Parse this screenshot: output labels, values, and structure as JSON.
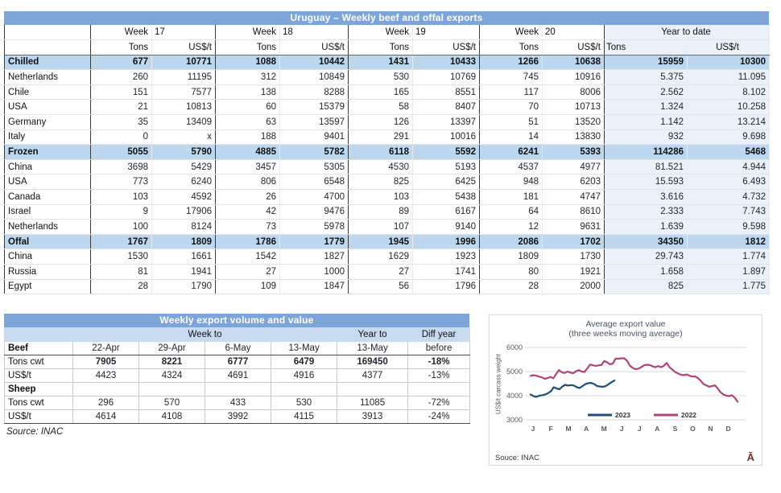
{
  "main_table": {
    "title": "Uruguay – Weekly beef and offal exports",
    "weeks": [
      {
        "label": "Week",
        "num": "17"
      },
      {
        "label": "Week",
        "num": "18"
      },
      {
        "label": "Week",
        "num": "19"
      },
      {
        "label": "Week",
        "num": "20"
      }
    ],
    "ytd_label": "Year to date",
    "tons_label": "Tons",
    "usdt_label": "US$/t",
    "rows": [
      {
        "label": "Chilled",
        "section": true,
        "values": [
          "677",
          "10771",
          "1088",
          "10442",
          "1431",
          "10433",
          "1266",
          "10638",
          "15959",
          "10300"
        ]
      },
      {
        "label": "Netherlands",
        "section": false,
        "values": [
          "260",
          "11195",
          "312",
          "10849",
          "530",
          "10769",
          "745",
          "10916",
          "5.375",
          "11.095"
        ]
      },
      {
        "label": "Chile",
        "section": false,
        "values": [
          "151",
          "7577",
          "138",
          "8288",
          "165",
          "8551",
          "117",
          "8006",
          "2.562",
          "8.102"
        ]
      },
      {
        "label": "USA",
        "section": false,
        "values": [
          "21",
          "10813",
          "60",
          "15379",
          "58",
          "8407",
          "70",
          "10713",
          "1.324",
          "10.258"
        ]
      },
      {
        "label": "Germany",
        "section": false,
        "values": [
          "35",
          "13409",
          "63",
          "13597",
          "126",
          "13397",
          "51",
          "13520",
          "1.142",
          "13.214"
        ]
      },
      {
        "label": "Italy",
        "section": false,
        "values": [
          "0",
          "x",
          "188",
          "9401",
          "291",
          "10016",
          "14",
          "13830",
          "932",
          "9.698"
        ]
      },
      {
        "label": "Frozen",
        "section": true,
        "values": [
          "5055",
          "5790",
          "4885",
          "5782",
          "6118",
          "5592",
          "6241",
          "5393",
          "114286",
          "5468"
        ]
      },
      {
        "label": "China",
        "section": false,
        "values": [
          "3698",
          "5429",
          "3457",
          "5305",
          "4530",
          "5193",
          "4537",
          "4977",
          "81.521",
          "4.944"
        ]
      },
      {
        "label": "USA",
        "section": false,
        "values": [
          "773",
          "6240",
          "806",
          "6548",
          "825",
          "6425",
          "948",
          "6203",
          "15.593",
          "6.493"
        ]
      },
      {
        "label": "Canada",
        "section": false,
        "values": [
          "103",
          "4592",
          "26",
          "4700",
          "103",
          "5438",
          "181",
          "4747",
          "3.616",
          "4.732"
        ]
      },
      {
        "label": "Israel",
        "section": false,
        "values": [
          "9",
          "17906",
          "42",
          "9476",
          "89",
          "6167",
          "64",
          "8610",
          "2.333",
          "7.743"
        ]
      },
      {
        "label": "Netherlands",
        "section": false,
        "values": [
          "100",
          "8124",
          "73",
          "5978",
          "107",
          "9140",
          "12",
          "9631",
          "1.639",
          "9.598"
        ]
      },
      {
        "label": "Offal",
        "section": true,
        "values": [
          "1767",
          "1809",
          "1786",
          "1779",
          "1945",
          "1996",
          "2086",
          "1702",
          "34350",
          "1812"
        ]
      },
      {
        "label": "China",
        "section": false,
        "values": [
          "1530",
          "1661",
          "1542",
          "1827",
          "1629",
          "1923",
          "1809",
          "1730",
          "29.743",
          "1.774"
        ]
      },
      {
        "label": "Russia",
        "section": false,
        "values": [
          "81",
          "1941",
          "27",
          "1000",
          "27",
          "1741",
          "80",
          "1921",
          "1.658",
          "1.897"
        ]
      },
      {
        "label": "Egypt",
        "section": false,
        "values": [
          "28",
          "1790",
          "109",
          "1847",
          "56",
          "1796",
          "28",
          "2000",
          "825",
          "1.775"
        ]
      }
    ]
  },
  "weekly_table": {
    "title": "Weekly export volume and value",
    "group_week_to": "Week to",
    "group_year_to": "Year to",
    "group_diff": "Diff year",
    "col_headers": {
      "label": "Beef",
      "w1": "22-Apr",
      "w2": "29-Apr",
      "w3": "6-May",
      "w4": "13-May",
      "yt": "13-May",
      "diff": "before"
    },
    "rows": [
      {
        "label": "Tons cwt",
        "bold_label": false,
        "bold_values": true,
        "values": [
          "7905",
          "8221",
          "6777",
          "6479",
          "169450",
          "-18%"
        ]
      },
      {
        "label": "US$/t",
        "bold_label": false,
        "bold_values": false,
        "values": [
          "4423",
          "4324",
          "4691",
          "4916",
          "4377",
          "-13%"
        ]
      },
      {
        "label": "Sheep",
        "bold_label": true,
        "bold_values": false,
        "values": [
          "",
          "",
          "",
          "",
          "",
          ""
        ]
      },
      {
        "label": "Tons cwt",
        "bold_label": false,
        "bold_values": false,
        "values": [
          "296",
          "570",
          "433",
          "530",
          "11085",
          "-72%"
        ]
      },
      {
        "label": "US$/t",
        "bold_label": false,
        "bold_values": false,
        "values": [
          "4614",
          "4108",
          "3992",
          "4115",
          "3913",
          "-24%"
        ]
      }
    ],
    "source": "Source: INAC"
  },
  "chart_data": {
    "type": "line",
    "title": "Average export  value",
    "subtitle": "(three weeks moving average)",
    "ylabel": "US$/t carcass weight",
    "ylim": [
      3000,
      6000
    ],
    "yticks": [
      6000,
      5000,
      4000,
      3000
    ],
    "x_tick_labels": [
      "J",
      "F",
      "M",
      "A",
      "M",
      "J",
      "J",
      "A",
      "S",
      "O",
      "N",
      "D"
    ],
    "grid": true,
    "legend_position": "bottom-inside",
    "source": "Souce: INAC",
    "watermark": "Ā",
    "series": [
      {
        "name": "2023",
        "color": "#1f4e79",
        "x_start": 0,
        "x_end": 4.7,
        "values": [
          4050,
          3980,
          3950,
          4000,
          4020,
          4050,
          4100,
          4180,
          4350,
          4300,
          4270,
          4380,
          4450,
          4420,
          4440,
          4420,
          4350,
          4320,
          4400,
          4480,
          4520,
          4530,
          4480,
          4400,
          4380,
          4370,
          4400,
          4480,
          4560,
          4630
        ]
      },
      {
        "name": "2022",
        "color": "#b0457b",
        "x_start": 0,
        "x_end": 11.6,
        "values": [
          4820,
          4850,
          4830,
          4790,
          4760,
          4700,
          4730,
          4780,
          4720,
          4900,
          5060,
          4970,
          4940,
          5000,
          4960,
          4930,
          5010,
          5060,
          5000,
          4980,
          5130,
          5290,
          5260,
          5230,
          5260,
          5270,
          5440,
          5380,
          5300,
          5330,
          5540,
          5530,
          5550,
          5550,
          5450,
          5250,
          5150,
          5100,
          5120,
          5180,
          5260,
          5280,
          5270,
          5220,
          5180,
          5230,
          5180,
          5240,
          5360,
          5180,
          5080,
          4980,
          4920,
          4870,
          4850,
          4880,
          4830,
          4790,
          4800,
          4730,
          4620,
          4480,
          4430,
          4370,
          4400,
          4430,
          4300,
          4140,
          4050,
          4000,
          3980,
          4020,
          3920,
          3750
        ]
      }
    ]
  }
}
